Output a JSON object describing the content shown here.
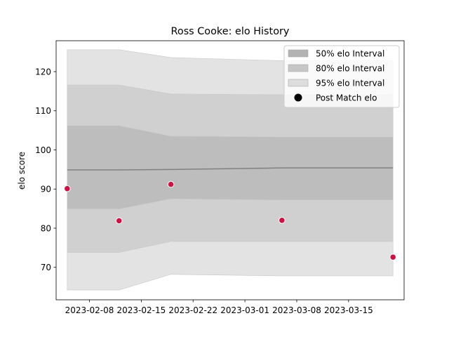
{
  "chart_data": {
    "type": "area",
    "title": "Ross Cooke: elo History",
    "xlabel": "",
    "ylabel": "elo score",
    "ylim": [
      61.7,
      127.9
    ],
    "xlim": [
      "2023-02-03T12:00",
      "2023-03-22T12:00"
    ],
    "grid": false,
    "legend_placement": "top-right",
    "x_ticks": [
      "2023-02-08",
      "2023-02-15",
      "2023-02-22",
      "2023-03-01",
      "2023-03-08",
      "2023-03-15"
    ],
    "y_ticks": [
      70,
      80,
      90,
      100,
      110,
      120
    ],
    "dates": [
      "2023-02-05",
      "2023-02-12",
      "2023-02-19",
      "2023-03-06",
      "2023-03-21"
    ],
    "mean": [
      94.9,
      94.9,
      95.0,
      95.4,
      95.4
    ],
    "bands": [
      {
        "name": "95% elo Interval",
        "color": "#e3e3e3",
        "lower": [
          64.2,
          64.2,
          68.2,
          67.8,
          67.8
        ],
        "upper": [
          125.6,
          125.6,
          123.6,
          122.8,
          122.8
        ]
      },
      {
        "name": "80% elo Interval",
        "color": "#d0d0d0",
        "lower": [
          73.8,
          73.8,
          76.6,
          76.6,
          76.6
        ],
        "upper": [
          116.6,
          116.6,
          114.3,
          114.1,
          114.1
        ]
      },
      {
        "name": "50% elo Interval",
        "color": "#bdbdbd",
        "lower": [
          84.9,
          84.9,
          87.5,
          87.2,
          87.2
        ],
        "upper": [
          106.2,
          106.2,
          103.5,
          103.3,
          103.3
        ]
      }
    ],
    "legend": [
      {
        "name": "50% elo Interval",
        "color": "#b3b3b3",
        "kind": "patch"
      },
      {
        "name": "80% elo Interval",
        "color": "#c6c6c6",
        "kind": "patch"
      },
      {
        "name": "95% elo Interval",
        "color": "#dddddd",
        "kind": "patch"
      },
      {
        "name": "Post Match elo",
        "color": "#000000",
        "kind": "marker"
      }
    ],
    "points": {
      "name": "Post Match elo",
      "color": "#d11141",
      "dates": [
        "2023-02-05",
        "2023-02-12",
        "2023-02-19",
        "2023-03-06",
        "2023-03-21"
      ],
      "values": [
        90.1,
        81.9,
        91.2,
        82.0,
        72.6
      ]
    }
  }
}
